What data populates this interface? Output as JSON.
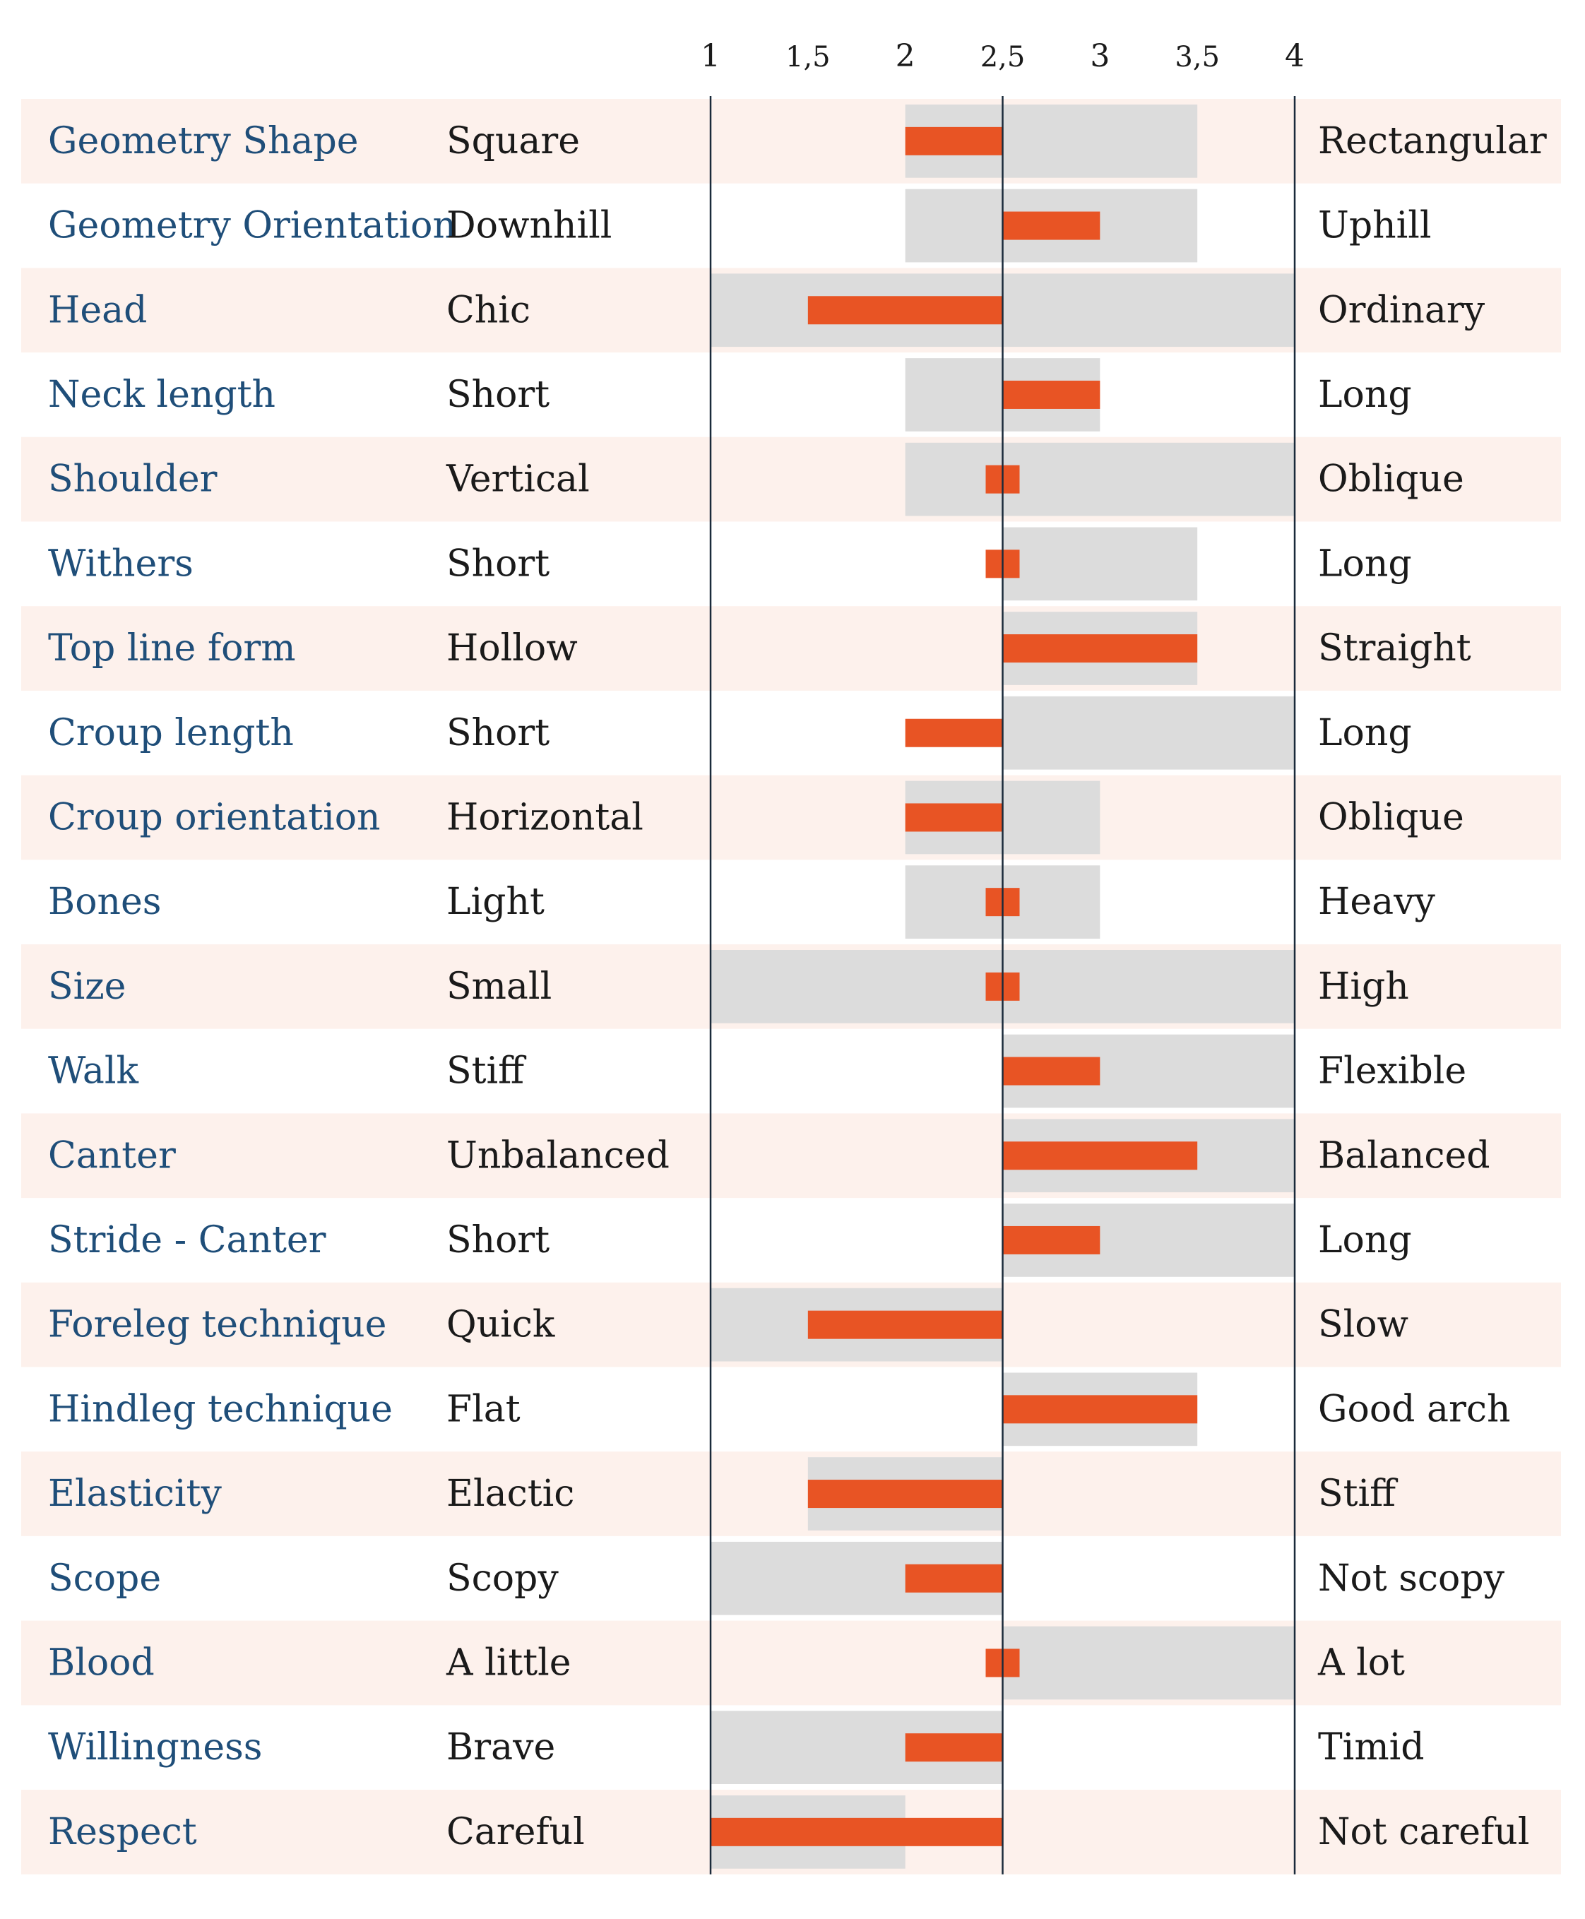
{
  "colors": {
    "row_stripe": "#fdf1ec",
    "range_band": "#dcdcdc",
    "value_bar": "#e85424",
    "trait_text": "#1f4e79",
    "pole_text": "#1a1a1a",
    "axis_line": "#1a2a3a"
  },
  "chart_data": {
    "type": "bar",
    "orientation": "horizontal",
    "xlim": [
      1,
      4
    ],
    "midpoint": 2.5,
    "ticks": [
      {
        "value": 1,
        "label": "1"
      },
      {
        "value": 1.5,
        "label": "1,5"
      },
      {
        "value": 2,
        "label": "2"
      },
      {
        "value": 2.5,
        "label": "2,5"
      },
      {
        "value": 3,
        "label": "3"
      },
      {
        "value": 3.5,
        "label": "3,5"
      },
      {
        "value": 4,
        "label": "4"
      }
    ],
    "rows": [
      {
        "trait": "Geometry Shape",
        "low": "Square",
        "high": "Rectangular",
        "range": [
          2,
          3.5
        ],
        "value": 2
      },
      {
        "trait": "Geometry Orientation",
        "low": "Downhill",
        "high": "Uphill",
        "range": [
          2,
          3.5
        ],
        "value": 3
      },
      {
        "trait": "Head",
        "low": "Chic",
        "high": "Ordinary",
        "range": [
          1,
          4
        ],
        "value": 1.5
      },
      {
        "trait": "Neck length",
        "low": "Short",
        "high": "Long",
        "range": [
          2,
          3
        ],
        "value": 3
      },
      {
        "trait": "Shoulder",
        "low": "Vertical",
        "high": "Oblique",
        "range": [
          2,
          4
        ],
        "value": 2.5
      },
      {
        "trait": "Withers",
        "low": "Short",
        "high": "Long",
        "range": [
          2.5,
          3.5
        ],
        "value": 2.5
      },
      {
        "trait": "Top line form",
        "low": "Hollow",
        "high": "Straight",
        "range": [
          2.5,
          3.5
        ],
        "value": 3.5
      },
      {
        "trait": "Croup length",
        "low": "Short",
        "high": "Long",
        "range": [
          2.5,
          4
        ],
        "value": 2
      },
      {
        "trait": "Croup orientation",
        "low": "Horizontal",
        "high": "Oblique",
        "range": [
          2,
          3
        ],
        "value": 2
      },
      {
        "trait": "Bones",
        "low": "Light",
        "high": "Heavy",
        "range": [
          2,
          3
        ],
        "value": 2.5
      },
      {
        "trait": "Size",
        "low": "Small",
        "high": "High",
        "range": [
          1,
          4
        ],
        "value": 2.5
      },
      {
        "trait": "Walk",
        "low": "Stiff",
        "high": "Flexible",
        "range": [
          2.5,
          4
        ],
        "value": 3
      },
      {
        "trait": "Canter",
        "low": "Unbalanced",
        "high": "Balanced",
        "range": [
          2.5,
          4
        ],
        "value": 3.5
      },
      {
        "trait": "Stride - Canter",
        "low": "Short",
        "high": "Long",
        "range": [
          2.5,
          4
        ],
        "value": 3
      },
      {
        "trait": "Foreleg technique",
        "low": "Quick",
        "high": "Slow",
        "range": [
          1,
          2.5
        ],
        "value": 1.5
      },
      {
        "trait": "Hindleg technique",
        "low": "Flat",
        "high": "Good arch",
        "range": [
          2.5,
          3.5
        ],
        "value": 3.5
      },
      {
        "trait": "Elasticity",
        "low": "Elactic",
        "high": "Stiff",
        "range": [
          1.5,
          2.5
        ],
        "value": 1.5
      },
      {
        "trait": "Scope",
        "low": "Scopy",
        "high": "Not scopy",
        "range": [
          1,
          2.5
        ],
        "value": 2
      },
      {
        "trait": "Blood",
        "low": "A little",
        "high": "A lot",
        "range": [
          2.5,
          4
        ],
        "value": 2.5
      },
      {
        "trait": "Willingness",
        "low": "Brave",
        "high": "Timid",
        "range": [
          1,
          2.5
        ],
        "value": 2
      },
      {
        "trait": "Respect",
        "low": "Careful",
        "high": "Not careful",
        "range": [
          1,
          2
        ],
        "value": 1
      }
    ]
  }
}
